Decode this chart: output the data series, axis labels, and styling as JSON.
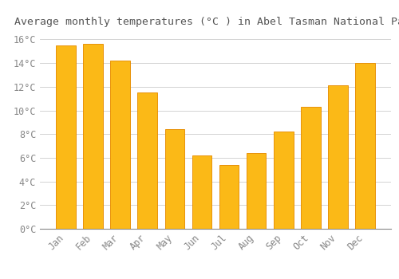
{
  "title": "Average monthly temperatures (°C ) in Abel Tasman National Park",
  "months": [
    "Jan",
    "Feb",
    "Mar",
    "Apr",
    "May",
    "Jun",
    "Jul",
    "Aug",
    "Sep",
    "Oct",
    "Nov",
    "Dec"
  ],
  "values": [
    15.5,
    15.6,
    14.2,
    11.5,
    8.4,
    6.2,
    5.4,
    6.4,
    8.2,
    10.3,
    12.1,
    14.0
  ],
  "bar_color": "#FBB917",
  "bar_edge_color": "#E8920A",
  "background_color": "#FFFFFF",
  "grid_color": "#CCCCCC",
  "text_color": "#888888",
  "title_color": "#555555",
  "ylim": [
    0,
    16.5
  ],
  "yticks": [
    0,
    2,
    4,
    6,
    8,
    10,
    12,
    14,
    16
  ],
  "title_fontsize": 9.5,
  "tick_fontsize": 8.5,
  "font_family": "monospace"
}
